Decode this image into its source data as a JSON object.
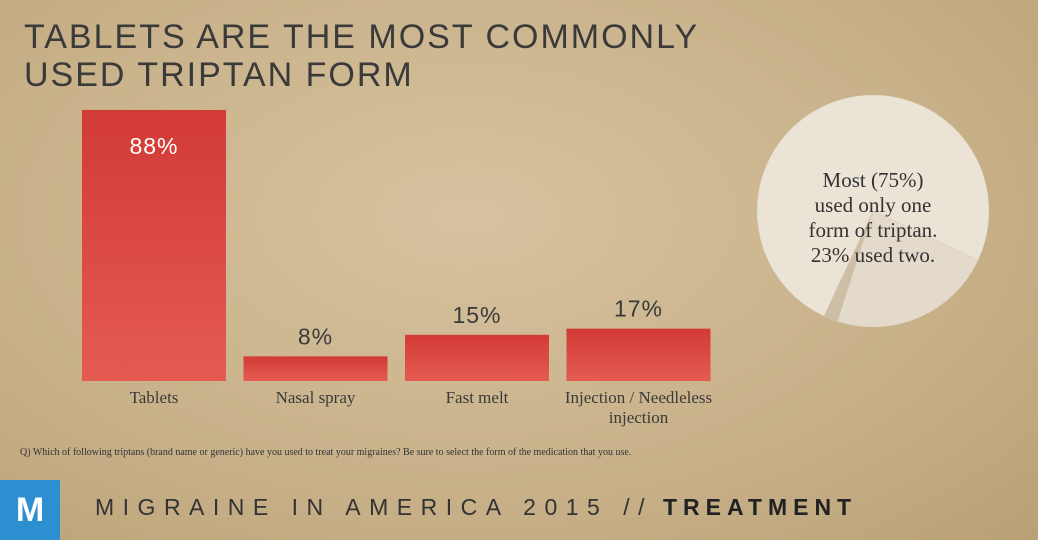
{
  "title": "TABLETS ARE THE MOST COMMONLY USED TRIPTAN FORM",
  "chart_data": [
    {
      "type": "bar",
      "categories": [
        "Tablets",
        "Nasal spray",
        "Fast melt",
        "Injection / Needleless injection"
      ],
      "values": [
        88,
        8,
        15,
        17
      ],
      "value_labels": [
        "88%",
        "8%",
        "15%",
        "17%"
      ],
      "color": "#dc4640"
    },
    {
      "type": "pie",
      "values": [
        75,
        23,
        2
      ],
      "colors": [
        "#ebe4d6",
        "#e3dacb",
        "#cdbfa6"
      ],
      "annotation_lines": [
        "Most (75%)",
        "used only one",
        "form of triptan.",
        "23% used two."
      ]
    }
  ],
  "footnote": "Q) Which of following triptans (brand name or generic) have you used to treat your migraines? Be sure to select the form of the medication that you use.",
  "footer": {
    "logo": "M",
    "series_name": "MIGRAINE IN AMERICA 2015 //",
    "section": "TREATMENT"
  }
}
